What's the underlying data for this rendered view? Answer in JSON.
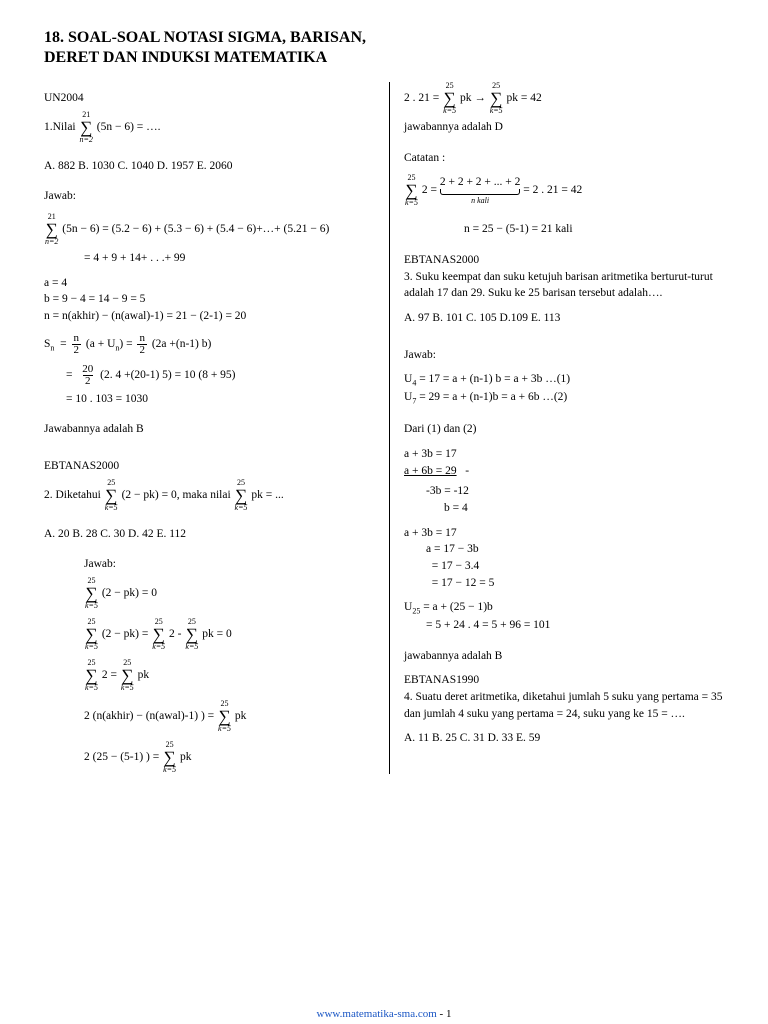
{
  "title": "18. SOAL-SOAL NOTASI SIGMA, BARISAN, DERET DAN INDUKSI MATEMATIKA",
  "left": {
    "p1_src": "UN2004",
    "p1_q": "1.Nilai",
    "p1_sum_top": "21",
    "p1_sum_bot": "n=2",
    "p1_sum_body": "(5n − 6) =  ….",
    "p1_opts": "A. 882    B. 1030    C. 1040    D. 1957    E. 2060",
    "p1_j": "Jawab:",
    "p1_l1_top": "21",
    "p1_l1_bot": "n=2",
    "p1_l1_rhs": "(5n − 6) =  (5.2 − 6) + (5.3 − 6) + (5.4 − 6)+…+ (5.21 − 6)",
    "p1_l2": "= 4 + 9 + 14+ . . .+ 99",
    "p1_abn_a": "a = 4",
    "p1_abn_b": "b = 9 − 4 = 14 − 9 =  5",
    "p1_abn_n": "n =  n(akhir) − (n(awal)-1) = 21 − (2-1) = 20",
    "p1_sn_lhs": "S",
    "p1_sn_sub": "n",
    "p1_sn_eq1": "(a + U",
    "p1_sn_eq1b": ") =",
    "p1_sn_eq2": "(2a +(n-1) b)",
    "p1_sn_l3": "(2. 4 +(20-1) 5) = 10 (8 + 95)",
    "p1_sn_l4": "= 10 . 103 = 1030",
    "p1_ans": "Jawabannya adalah B",
    "p2_src": "EBTANAS2000",
    "p2_q_pre": "2. Diketahui",
    "p2_sum_top": "25",
    "p2_sum_bot": "k=5",
    "p2_q_mid": "(2 − pk) =  0, maka nilai",
    "p2_q_end": "pk = ...",
    "p2_opts": "A. 20     B. 28     C. 30     D. 42     E. 112",
    "p2_j": "Jawab:",
    "p2_l1_body": "(2 − pk) =  0",
    "p2_l2_lhs": "(2 − pk) = ",
    "p2_l2_r1": "2  -",
    "p2_l2_r2": "pk =  0",
    "p2_l3_l": "2  =",
    "p2_l3_r": "pk",
    "p2_l4_pre": "2 (n(akhir) − (n(awal)-1) )  =",
    "p2_l4_r": "pk",
    "p2_l5_pre": "2 (25 − (5-1) ) =",
    "p2_l5_r": "pk"
  },
  "right": {
    "r1_pre": "2 . 21 =",
    "r1_mid": "pk   →  ",
    "r1_end": "pk  = 42",
    "r1_ans": "jawabannya adalah D",
    "r1_cat": "Catatan :",
    "r1_sum_body": "2   =",
    "r1_ub_expr": "2 + 2 + 2 + ... + 2",
    "r1_ub_lbl": "n  kali",
    "r1_ub_end": "  = 2 . 21 = 42",
    "r1_n": "n =  25 − (5-1) = 21 kali",
    "p3_src": "EBTANAS2000",
    "p3_q": "3. Suku keempat dan suku ketujuh barisan aritmetika berturut-turut adalah 17 dan 29. Suku ke 25 barisan tersebut adalah….",
    "p3_opts": "A. 97    B. 101    C. 105    D.109    E. 113",
    "p3_j": "Jawab:",
    "p3_u4": "= 17 = a + (n-1) b = a + 3b   …(1)",
    "p3_u7": "= 29 = a  + (n-1)b = a + 6b   …(2)",
    "p3_dari": "Dari (1) dan (2)",
    "p3_eq1": "a + 3b = 17",
    "p3_eq2": "a + 6b = 29",
    "p3_minus": "-",
    "p3_r1": "-3b  = -12",
    "p3_r2": "b = 4",
    "p3_s1": "a + 3b = 17",
    "p3_s2": "a = 17 − 3b",
    "p3_s3": "= 17 − 3.4",
    "p3_s4": "= 17 − 12 = 5",
    "p3_u25a": "= a + (25 − 1)b",
    "p3_u25b": "=  5 + 24 . 4 = 5 + 96 = 101",
    "p3_ans": "jawabannya adalah B",
    "p4_src": "EBTANAS1990",
    "p4_q": "4. Suatu deret aritmetika, diketahui jumlah 5 suku yang pertama = 35 dan jumlah 4 suku yang pertama = 24, suku yang ke 15 = ….",
    "p4_opts": "A. 11     B. 25     C. 31     D. 33     E. 59"
  },
  "footer_url": "www.matematika-sma.com",
  "footer_pg": " - 1"
}
